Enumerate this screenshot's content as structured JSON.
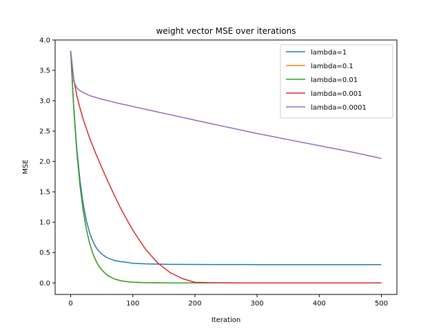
{
  "chart_data": {
    "type": "line",
    "title": "weight vector MSE over iterations",
    "xlabel": "Iteration",
    "ylabel": "MSE",
    "xlim": [
      -25,
      525
    ],
    "ylim": [
      -0.19,
      4.0
    ],
    "xticks": [
      0,
      100,
      200,
      300,
      400,
      500
    ],
    "xtick_labels": [
      "0",
      "100",
      "200",
      "300",
      "400",
      "500"
    ],
    "yticks": [
      0.0,
      0.5,
      1.0,
      1.5,
      2.0,
      2.5,
      3.0,
      3.5,
      4.0
    ],
    "ytick_labels": [
      "0.0",
      "0.5",
      "1.0",
      "1.5",
      "2.0",
      "2.5",
      "3.0",
      "3.5",
      "4.0"
    ],
    "grid": false,
    "legend_position": "upper-right",
    "x": [
      0,
      5,
      10,
      15,
      20,
      25,
      30,
      35,
      40,
      45,
      50,
      60,
      70,
      80,
      90,
      100,
      120,
      140,
      160,
      180,
      200,
      225,
      250,
      275,
      300,
      325,
      350,
      375,
      400,
      425,
      450,
      475,
      500
    ],
    "series": [
      {
        "name": "lambda=1",
        "color": "#1f77b4",
        "values": [
          3.82,
          2.901,
          2.206,
          1.691,
          1.312,
          1.04,
          0.843,
          0.702,
          0.6,
          0.527,
          0.474,
          0.408,
          0.371,
          0.351,
          0.339,
          0.323,
          0.314,
          0.309,
          0.306,
          0.305,
          0.304,
          0.303,
          0.302,
          0.302,
          0.301,
          0.301,
          0.301,
          0.301,
          0.301,
          0.301,
          0.301,
          0.301,
          0.301
        ]
      },
      {
        "name": "lambda=0.1",
        "color": "#ff7f0e",
        "values": [
          3.82,
          2.861,
          2.142,
          1.605,
          1.202,
          0.9,
          0.674,
          0.505,
          0.378,
          0.283,
          0.212,
          0.119,
          0.067,
          0.037,
          0.021,
          0.012,
          0.004,
          0.001,
          0.0,
          0.0,
          0.0,
          0.0,
          0.0,
          0.0,
          0.0,
          0.0,
          0.0,
          0.0,
          0.0,
          0.0,
          0.0,
          0.0,
          0.0
        ]
      },
      {
        "name": "lambda=0.01",
        "color": "#2ca02c",
        "values": [
          3.82,
          2.861,
          2.142,
          1.605,
          1.202,
          0.9,
          0.674,
          0.505,
          0.378,
          0.283,
          0.212,
          0.119,
          0.067,
          0.037,
          0.021,
          0.012,
          0.004,
          0.001,
          0.0,
          0.0,
          0.0,
          0.0,
          0.0,
          0.0,
          0.0,
          0.0,
          0.0,
          0.0,
          0.0,
          0.0,
          0.0,
          0.0,
          0.0
        ]
      },
      {
        "name": "lambda=0.001",
        "color": "#d62728",
        "values": [
          3.82,
          3.35,
          3.08,
          2.88,
          2.7,
          2.55,
          2.4,
          2.27,
          2.14,
          2.02,
          1.9,
          1.67,
          1.45,
          1.24,
          1.05,
          0.87,
          0.56,
          0.33,
          0.17,
          0.07,
          0.01,
          0.003,
          0.001,
          0.0,
          0.0,
          0.0,
          0.0,
          0.0,
          0.0,
          0.0,
          0.0,
          0.0,
          0.0
        ]
      },
      {
        "name": "lambda=0.0001",
        "color": "#9467bd",
        "values": [
          3.82,
          3.32,
          3.21,
          3.165,
          3.135,
          3.11,
          3.09,
          3.07,
          3.055,
          3.04,
          3.025,
          3.0,
          2.975,
          2.95,
          2.93,
          2.905,
          2.86,
          2.815,
          2.77,
          2.725,
          2.68,
          2.625,
          2.57,
          2.515,
          2.46,
          2.41,
          2.36,
          2.31,
          2.26,
          2.21,
          2.16,
          2.105,
          2.05
        ]
      }
    ]
  }
}
